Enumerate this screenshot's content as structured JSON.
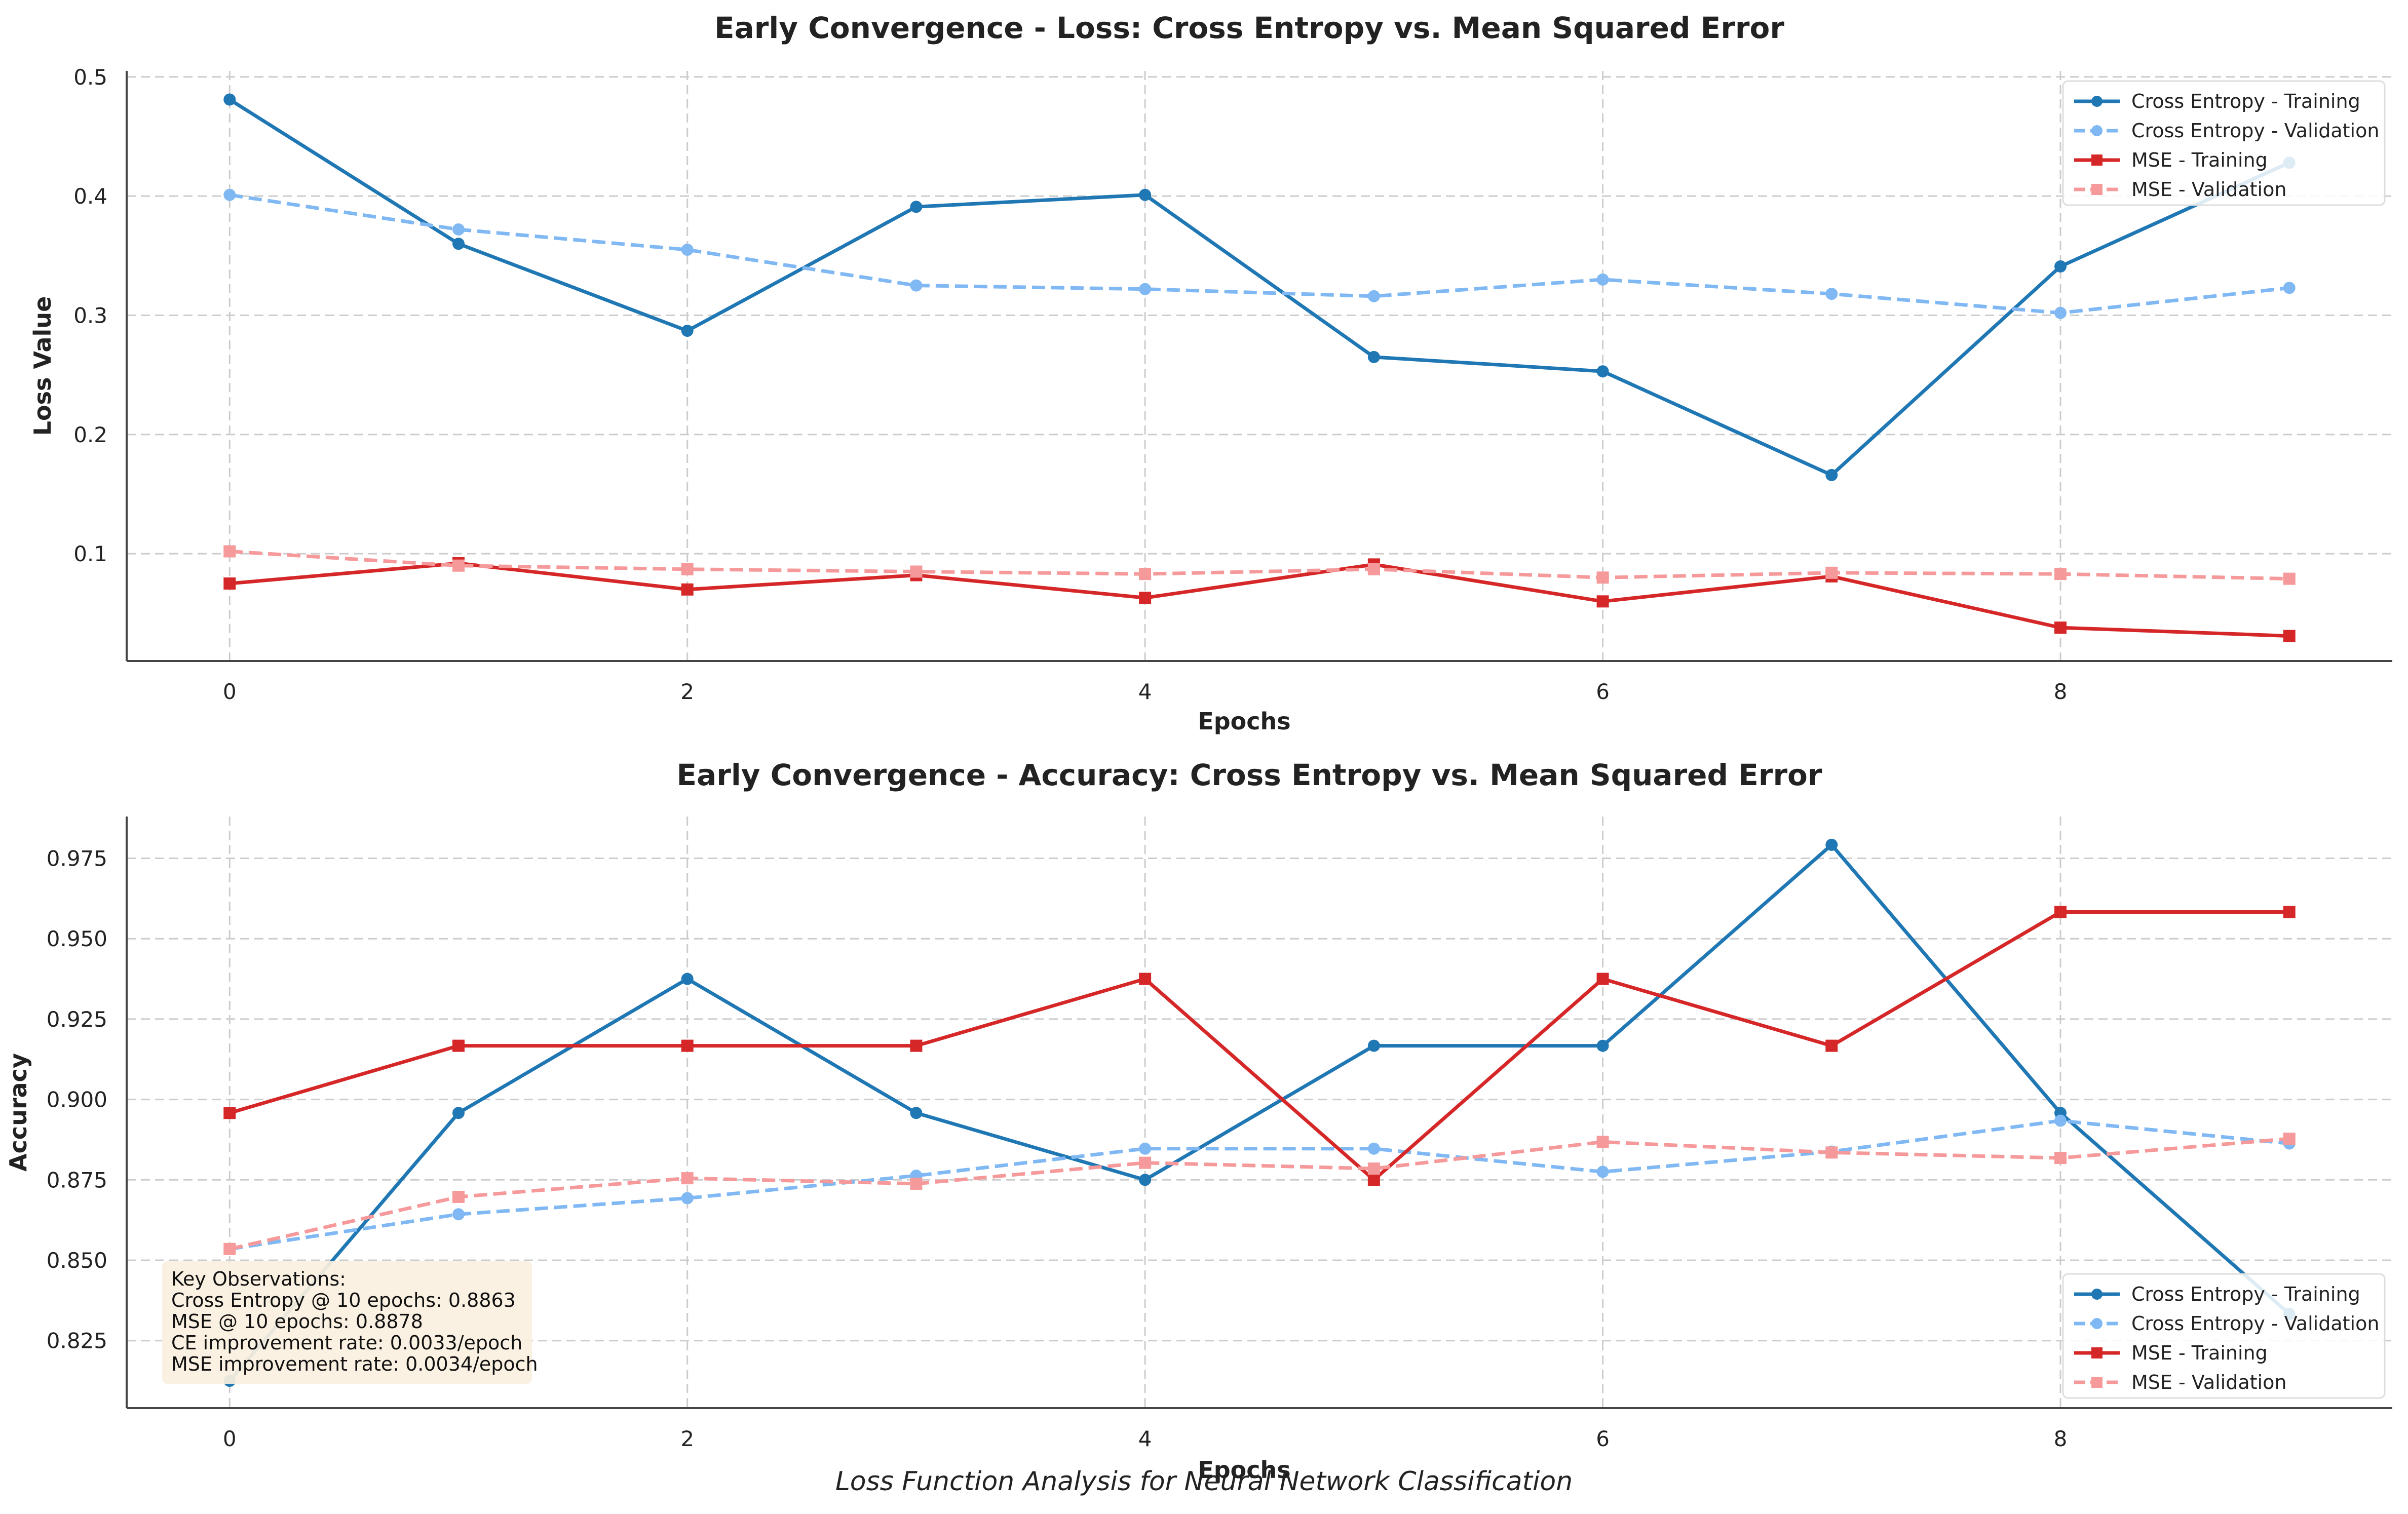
{
  "figure": {
    "suptitle": "Loss Function Analysis for Neural Network Classification"
  },
  "colors": {
    "ce_train": "#1f77b4",
    "ce_val": "#7fb8f3",
    "mse_train": "#d62728",
    "mse_val": "#f5999a",
    "grid": "#cccccc",
    "axis": "#444444",
    "text": "#222222",
    "annotation_bg": "#fbf0df"
  },
  "chart_data": [
    {
      "type": "line",
      "title": "Early Convergence - Loss: Cross Entropy vs. Mean Squared Error",
      "xlabel": "Epochs",
      "ylabel": "Loss Value",
      "x": [
        0,
        1,
        2,
        3,
        4,
        5,
        6,
        7,
        8,
        9
      ],
      "xlim": [
        -0.45,
        9.45
      ],
      "ylim": [
        0.01,
        0.505
      ],
      "xticks": [
        0,
        2,
        4,
        6,
        8
      ],
      "xtick_labels": [
        "0",
        "2",
        "4",
        "6",
        "8"
      ],
      "yticks": [
        0.1,
        0.2,
        0.3,
        0.4,
        0.5
      ],
      "ytick_labels": [
        "0.1",
        "0.2",
        "0.3",
        "0.4",
        "0.5"
      ],
      "grid": true,
      "legend_position": "top-right",
      "series": [
        {
          "name": "Cross Entropy - Training",
          "color": "#1f77b4",
          "style": "solid",
          "marker": "circle",
          "values": [
            0.481,
            0.36,
            0.287,
            0.391,
            0.401,
            0.265,
            0.253,
            0.166,
            0.341,
            0.428
          ]
        },
        {
          "name": "Cross Entropy - Validation",
          "color": "#7fb8f3",
          "style": "dashed",
          "marker": "circle",
          "values": [
            0.401,
            0.372,
            0.355,
            0.325,
            0.322,
            0.316,
            0.33,
            0.318,
            0.302,
            0.323
          ]
        },
        {
          "name": "MSE - Training",
          "color": "#d62728",
          "style": "solid",
          "marker": "square",
          "values": [
            0.075,
            0.092,
            0.07,
            0.082,
            0.063,
            0.091,
            0.06,
            0.081,
            0.038,
            0.031
          ]
        },
        {
          "name": "MSE - Validation",
          "color": "#f5999a",
          "style": "dashed",
          "marker": "square",
          "values": [
            0.102,
            0.09,
            0.087,
            0.085,
            0.083,
            0.087,
            0.08,
            0.084,
            0.083,
            0.079
          ]
        }
      ]
    },
    {
      "type": "line",
      "title": "Early Convergence - Accuracy: Cross Entropy vs. Mean Squared Error",
      "xlabel": "Epochs",
      "ylabel": "Accuracy",
      "x": [
        0,
        1,
        2,
        3,
        4,
        5,
        6,
        7,
        8,
        9
      ],
      "xlim": [
        -0.45,
        9.45
      ],
      "ylim": [
        0.804,
        0.988
      ],
      "xticks": [
        0,
        2,
        4,
        6,
        8
      ],
      "xtick_labels": [
        "0",
        "2",
        "4",
        "6",
        "8"
      ],
      "yticks": [
        0.825,
        0.85,
        0.875,
        0.9,
        0.925,
        0.95,
        0.975
      ],
      "ytick_labels": [
        "0.825",
        "0.850",
        "0.875",
        "0.900",
        "0.925",
        "0.950",
        "0.975"
      ],
      "grid": true,
      "legend_position": "bottom-right",
      "series": [
        {
          "name": "Cross Entropy - Training",
          "color": "#1f77b4",
          "style": "solid",
          "marker": "circle",
          "values": [
            0.8125,
            0.8958,
            0.9375,
            0.8958,
            0.875,
            0.9167,
            0.9167,
            0.9792,
            0.8958,
            0.8333
          ]
        },
        {
          "name": "Cross Entropy - Validation",
          "color": "#7fb8f3",
          "style": "dashed",
          "marker": "circle",
          "values": [
            0.8535,
            0.8643,
            0.8693,
            0.8763,
            0.8847,
            0.8847,
            0.8775,
            0.8838,
            0.8934,
            0.8863
          ]
        },
        {
          "name": "MSE - Training",
          "color": "#d62728",
          "style": "solid",
          "marker": "square",
          "values": [
            0.8958,
            0.9167,
            0.9167,
            0.9167,
            0.9375,
            0.875,
            0.9375,
            0.9167,
            0.9583,
            0.9583
          ]
        },
        {
          "name": "MSE - Validation",
          "color": "#f5999a",
          "style": "dashed",
          "marker": "square",
          "values": [
            0.8535,
            0.8697,
            0.8755,
            0.8738,
            0.8803,
            0.8785,
            0.8868,
            0.8835,
            0.8818,
            0.8878
          ]
        }
      ],
      "annotation": {
        "lines": [
          "Key Observations:",
          "Cross Entropy @ 10 epochs: 0.8863",
          "MSE @ 10 epochs: 0.8878",
          "CE improvement rate: 0.0033/epoch",
          "MSE improvement rate: 0.0034/epoch"
        ]
      }
    }
  ]
}
